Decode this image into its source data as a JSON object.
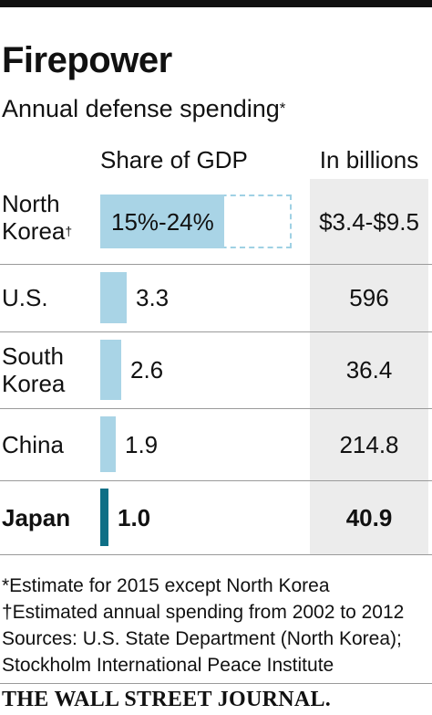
{
  "title": "Firepower",
  "subtitle": "Annual defense spending",
  "subtitle_mark": "*",
  "column_headers": {
    "share": "Share of GDP",
    "billions": "In billions"
  },
  "colors": {
    "bar": "#a9d4e6",
    "highlight": "#0e6f86",
    "range_outline": "#9fd1e4",
    "column_bg": "#ececec"
  },
  "chart_data": {
    "type": "bar",
    "categories": [
      "North Korea",
      "U.S.",
      "South Korea",
      "China",
      "Japan"
    ],
    "series": [
      {
        "name": "Share of GDP",
        "values": [
          24,
          3.3,
          2.6,
          1.9,
          1.0
        ],
        "range_low": [
          15,
          null,
          null,
          null,
          null
        ]
      },
      {
        "name": "In billions",
        "values": [
          9.5,
          596,
          36.4,
          214.8,
          40.9
        ],
        "range_low": [
          3.4,
          null,
          null,
          null,
          null
        ]
      }
    ],
    "rows": [
      {
        "name_line1": "North",
        "name_line2": "Korea",
        "mark": "†",
        "share_label": "15%-24%",
        "billions_label": "$3.4-$9.5"
      },
      {
        "name_line1": "U.S.",
        "name_line2": "",
        "mark": "",
        "share_label": "3.3",
        "billions_label": "596"
      },
      {
        "name_line1": "South",
        "name_line2": "Korea",
        "mark": "",
        "share_label": "2.6",
        "billions_label": "36.4"
      },
      {
        "name_line1": "China",
        "name_line2": "",
        "mark": "",
        "share_label": "1.9",
        "billions_label": "214.8"
      },
      {
        "name_line1": "Japan",
        "name_line2": "",
        "mark": "",
        "share_label": "1.0",
        "billions_label": "40.9"
      }
    ],
    "highlight": "Japan"
  },
  "notes": [
    "*Estimate for 2015 except North Korea",
    "†Estimated annual spending from 2002 to 2012",
    "Sources: U.S. State Department (North Korea);",
    "Stockholm International Peace Institute"
  ],
  "publisher": "THE WALL STREET JOURNAL."
}
